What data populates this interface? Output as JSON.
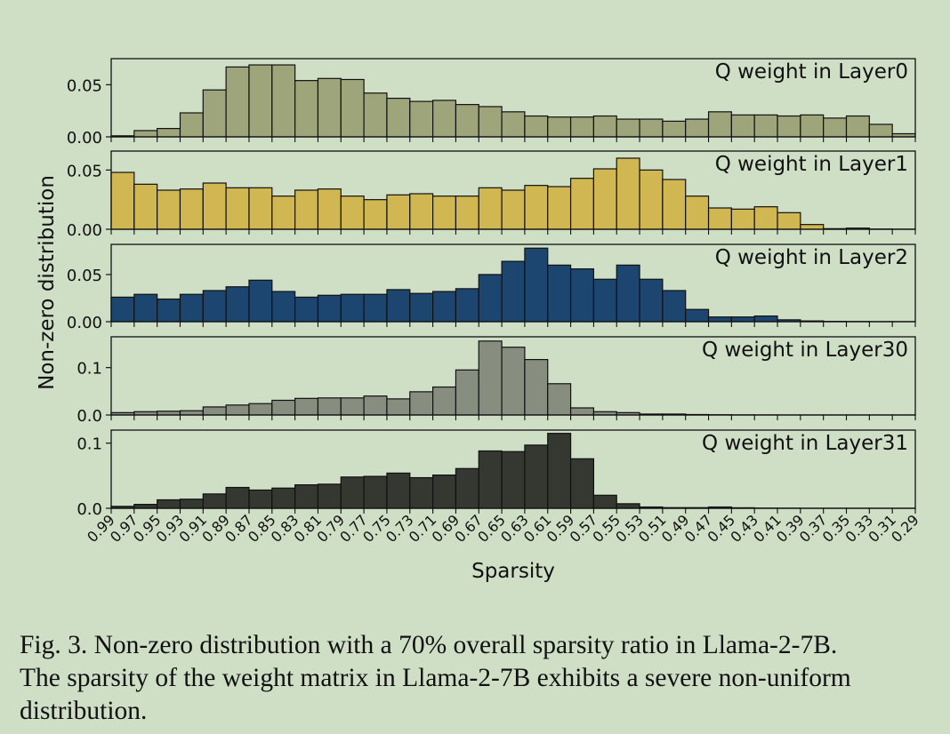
{
  "figure": {
    "xlabel": "Sparsity",
    "ylabel": "Non-zero distribution",
    "x_tick_labels": [
      "0.99",
      "0.97",
      "0.95",
      "0.93",
      "0.91",
      "0.89",
      "0.87",
      "0.85",
      "0.83",
      "0.81",
      "0.79",
      "0.77",
      "0.75",
      "0.73",
      "0.71",
      "0.69",
      "0.67",
      "0.65",
      "0.63",
      "0.61",
      "0.59",
      "0.57",
      "0.55",
      "0.53",
      "0.51",
      "0.49",
      "0.47",
      "0.45",
      "0.43",
      "0.41",
      "0.39",
      "0.37",
      "0.35",
      "0.33",
      "0.31",
      "0.29"
    ]
  },
  "caption": {
    "line1": "Fig. 3.  Non-zero distribution with a 70% overall sparsity ratio in Llama-2-7B.",
    "line2": "The sparsity of the weight matrix in Llama-2-7B exhibits a severe non-uniform",
    "line3": "distribution."
  },
  "chart_data": [
    {
      "type": "bar",
      "label": "Q weight in Layer0",
      "color": "#9ea57a",
      "ylim": [
        0,
        0.075
      ],
      "yticks": [
        "0.00",
        "0.05"
      ],
      "ytick_values": [
        0,
        0.05
      ],
      "values": [
        0.001,
        0.006,
        0.008,
        0.023,
        0.045,
        0.067,
        0.069,
        0.069,
        0.054,
        0.056,
        0.055,
        0.042,
        0.037,
        0.034,
        0.035,
        0.031,
        0.029,
        0.024,
        0.02,
        0.019,
        0.019,
        0.02,
        0.017,
        0.017,
        0.015,
        0.017,
        0.024,
        0.021,
        0.021,
        0.02,
        0.021,
        0.018,
        0.02,
        0.012,
        0.003
      ]
    },
    {
      "type": "bar",
      "label": "Q weight in Layer1",
      "color": "#d1b752",
      "ylim": [
        0,
        0.066
      ],
      "yticks": [
        "0.00",
        "0.05"
      ],
      "ytick_values": [
        0,
        0.05
      ],
      "values": [
        0.048,
        0.038,
        0.033,
        0.034,
        0.039,
        0.035,
        0.035,
        0.028,
        0.033,
        0.034,
        0.028,
        0.025,
        0.029,
        0.03,
        0.028,
        0.028,
        0.035,
        0.033,
        0.037,
        0.036,
        0.043,
        0.051,
        0.06,
        0.05,
        0.042,
        0.028,
        0.018,
        0.017,
        0.019,
        0.014,
        0.004,
        0.0005,
        0.001,
        0.0002,
        0.0001
      ]
    },
    {
      "type": "bar",
      "label": "Q weight in Layer2",
      "color": "#1c4670",
      "ylim": [
        0,
        0.082
      ],
      "yticks": [
        "0.00",
        "0.05"
      ],
      "ytick_values": [
        0,
        0.05
      ],
      "values": [
        0.026,
        0.029,
        0.024,
        0.029,
        0.033,
        0.037,
        0.044,
        0.032,
        0.026,
        0.028,
        0.029,
        0.029,
        0.034,
        0.03,
        0.032,
        0.035,
        0.05,
        0.064,
        0.078,
        0.06,
        0.056,
        0.045,
        0.06,
        0.045,
        0.033,
        0.013,
        0.005,
        0.005,
        0.006,
        0.002,
        0.0008,
        0.0003,
        0.0002,
        0.0001,
        0.0001
      ]
    },
    {
      "type": "bar",
      "label": "Q weight in Layer30",
      "color": "#888e7f",
      "ylim": [
        0,
        0.165
      ],
      "yticks": [
        "0.0",
        "0.1"
      ],
      "ytick_values": [
        0,
        0.1
      ],
      "values": [
        0.005,
        0.007,
        0.008,
        0.009,
        0.017,
        0.021,
        0.024,
        0.031,
        0.035,
        0.036,
        0.036,
        0.04,
        0.034,
        0.049,
        0.059,
        0.095,
        0.156,
        0.143,
        0.117,
        0.066,
        0.015,
        0.007,
        0.005,
        0.002,
        0.002,
        0.001,
        0.0005,
        0.0003,
        0.0002,
        0.0001,
        0.0001,
        0.0001,
        0.0001,
        0.0001,
        0.0001
      ]
    },
    {
      "type": "bar",
      "label": "Q weight in Layer31",
      "color": "#353831",
      "ylim": [
        0,
        0.12
      ],
      "yticks": [
        "0.0",
        "0.1"
      ],
      "ytick_values": [
        0,
        0.1
      ],
      "values": [
        0.003,
        0.006,
        0.013,
        0.014,
        0.022,
        0.032,
        0.028,
        0.031,
        0.036,
        0.037,
        0.048,
        0.049,
        0.054,
        0.047,
        0.051,
        0.061,
        0.088,
        0.087,
        0.097,
        0.115,
        0.076,
        0.02,
        0.007,
        0.002,
        0.001,
        0.001,
        0.002,
        0.0008,
        0.0003,
        0.0002,
        0.0001,
        0.0001,
        0.0001,
        0.0001,
        0.0001
      ]
    }
  ]
}
